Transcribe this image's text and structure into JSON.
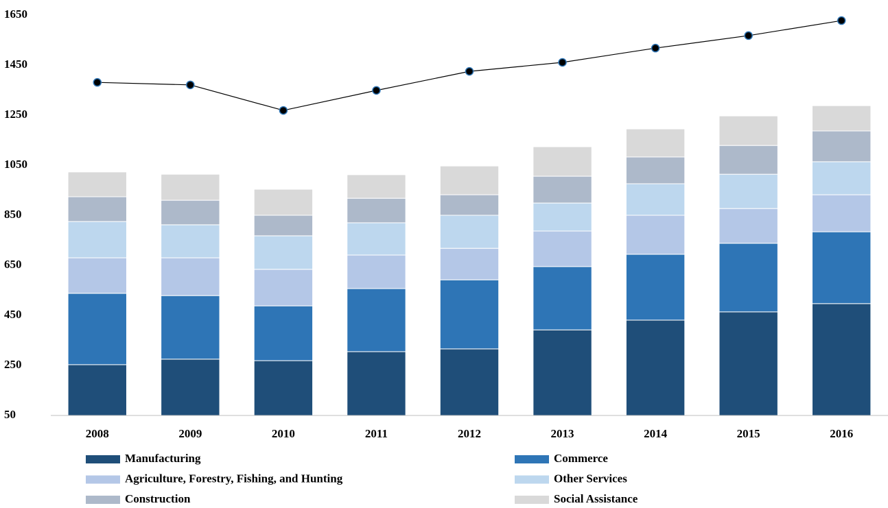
{
  "chart_data": {
    "type": "bar",
    "stacked": true,
    "categories": [
      "2008",
      "2009",
      "2010",
      "2011",
      "2012",
      "2013",
      "2014",
      "2015",
      "2016"
    ],
    "ylim": [
      50,
      1650
    ],
    "yticks": [
      50,
      250,
      450,
      650,
      850,
      1050,
      1250,
      1450,
      1650
    ],
    "series": [
      {
        "name": "Manufacturing",
        "color": "#1f4e79",
        "values": [
          253,
          275,
          269,
          305,
          316,
          392,
          431,
          464,
          497
        ]
      },
      {
        "name": "Commerce",
        "color": "#2e75b6",
        "values": [
          285,
          254,
          219,
          252,
          276,
          253,
          263,
          274,
          287
        ]
      },
      {
        "name": "Agriculture, Forestry, Fishing, and Hunting",
        "color": "#b4c7e7",
        "values": [
          142,
          151,
          146,
          134,
          126,
          142,
          156,
          139,
          148
        ]
      },
      {
        "name": "Other Services",
        "color": "#bdd7ee",
        "values": [
          145,
          132,
          134,
          129,
          132,
          112,
          126,
          137,
          132
        ]
      },
      {
        "name": "Construction",
        "color": "#adb9ca",
        "values": [
          99,
          98,
          82,
          98,
          82,
          107,
          107,
          115,
          123
        ]
      },
      {
        "name": "Social Assistance",
        "color": "#d9d9d9",
        "values": [
          99,
          104,
          104,
          94,
          115,
          118,
          112,
          118,
          101
        ]
      },
      {
        "type": "line",
        "color": "#000000",
        "values": [
          1381,
          1371,
          1269,
          1349,
          1425,
          1461,
          1518,
          1568,
          1628
        ]
      }
    ]
  }
}
